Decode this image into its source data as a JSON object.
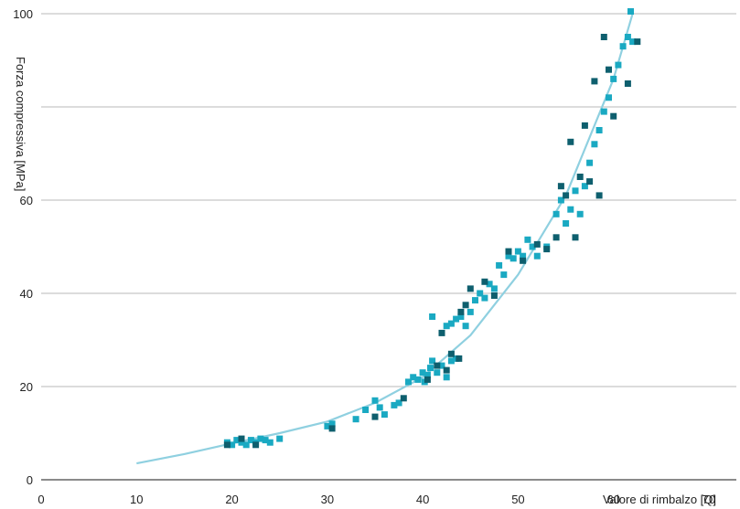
{
  "chart_data": {
    "type": "scatter",
    "xlabel": "Valore di rimbalzo [Q]",
    "ylabel": "Forza compressiva [MPa]",
    "xlim": [
      0,
      70
    ],
    "ylim": [
      0,
      100
    ],
    "x_ticks": [
      "0",
      "10",
      "20",
      "30",
      "40",
      "50",
      "60",
      "70"
    ],
    "y_ticks": [
      {
        "value": 0,
        "label": "0",
        "color": "#222222"
      },
      {
        "value": 20,
        "label": "20",
        "color": "#222222"
      },
      {
        "value": 40,
        "label": "40",
        "color": "#222222"
      },
      {
        "value": 60,
        "label": "60",
        "color": "#2f8c7a"
      },
      {
        "value": 100,
        "label": "100",
        "color": "#222222"
      }
    ],
    "grid": {
      "horizontal": true,
      "vertical": false,
      "lines_at": [
        20,
        40,
        60,
        80,
        100
      ]
    },
    "colors": {
      "marker_light": "#1aa9c2",
      "marker_dark": "#0e5f6e",
      "curve": "#8fd0e0",
      "grid": "#c8c8c8",
      "axis": "#444444"
    },
    "trendline": {
      "x": [
        10,
        15,
        20,
        25,
        30,
        35,
        40,
        45,
        50,
        55,
        60,
        62
      ],
      "y": [
        3.5,
        5.5,
        7.8,
        10.0,
        12.5,
        16.5,
        22.0,
        31.0,
        44.0,
        61.0,
        86.0,
        100.0
      ]
    },
    "series": [
      {
        "shade": "light",
        "points": [
          [
            19.5,
            8
          ],
          [
            20,
            7.5
          ],
          [
            20.5,
            8.5
          ],
          [
            21,
            8
          ],
          [
            21.5,
            7.5
          ],
          [
            22,
            8.5
          ],
          [
            22.5,
            8
          ],
          [
            23,
            8.8
          ],
          [
            23.5,
            8.5
          ],
          [
            24,
            8
          ],
          [
            25,
            8.8
          ],
          [
            30,
            11.5
          ],
          [
            30.5,
            12
          ],
          [
            33,
            13
          ],
          [
            34,
            15
          ],
          [
            35,
            17
          ],
          [
            35.5,
            15.5
          ],
          [
            36,
            14
          ],
          [
            37,
            16
          ],
          [
            37.5,
            16.5
          ],
          [
            38.5,
            21
          ],
          [
            39,
            22
          ],
          [
            39.5,
            21.5
          ],
          [
            40,
            23
          ],
          [
            40.2,
            21
          ],
          [
            40.5,
            22.5
          ],
          [
            40.8,
            24
          ],
          [
            41,
            25.5
          ],
          [
            41.5,
            23
          ],
          [
            42,
            24.5
          ],
          [
            42.5,
            22
          ],
          [
            43,
            25.5
          ],
          [
            43.5,
            26
          ],
          [
            41,
            35
          ],
          [
            42.5,
            33
          ],
          [
            43,
            33.5
          ],
          [
            43.5,
            34.5
          ],
          [
            44,
            35
          ],
          [
            44.5,
            33
          ],
          [
            45,
            36
          ],
          [
            45.5,
            38.5
          ],
          [
            46,
            40
          ],
          [
            46.5,
            39
          ],
          [
            47,
            42
          ],
          [
            47.5,
            41
          ],
          [
            48,
            46
          ],
          [
            48.5,
            44
          ],
          [
            49,
            48
          ],
          [
            49.5,
            47.5
          ],
          [
            50,
            49
          ],
          [
            50.5,
            48
          ],
          [
            51,
            51.5
          ],
          [
            51.5,
            50
          ],
          [
            52,
            48
          ],
          [
            53,
            50
          ],
          [
            54,
            57
          ],
          [
            54.5,
            60
          ],
          [
            55,
            55
          ],
          [
            55.5,
            58
          ],
          [
            56,
            62
          ],
          [
            56.5,
            57
          ],
          [
            57,
            63
          ],
          [
            57.5,
            68
          ],
          [
            58,
            72
          ],
          [
            58.5,
            75
          ],
          [
            59,
            79
          ],
          [
            59.5,
            82
          ],
          [
            60,
            86
          ],
          [
            60.5,
            89
          ],
          [
            61,
            93
          ],
          [
            61.5,
            95
          ],
          [
            62,
            94
          ],
          [
            61.8,
            100.5
          ]
        ]
      },
      {
        "shade": "dark",
        "points": [
          [
            19.5,
            7.5
          ],
          [
            21,
            8.8
          ],
          [
            22.5,
            7.5
          ],
          [
            30.5,
            11
          ],
          [
            35,
            13.5
          ],
          [
            38,
            17.5
          ],
          [
            40.5,
            21.5
          ],
          [
            41.5,
            24.5
          ],
          [
            42.5,
            23.5
          ],
          [
            43,
            27
          ],
          [
            43.8,
            26
          ],
          [
            42,
            31.5
          ],
          [
            44,
            36
          ],
          [
            44.5,
            37.5
          ],
          [
            45,
            41
          ],
          [
            46.5,
            42.5
          ],
          [
            47.5,
            39.5
          ],
          [
            49,
            49
          ],
          [
            50.5,
            47
          ],
          [
            52,
            50.5
          ],
          [
            53,
            49.5
          ],
          [
            54,
            52
          ],
          [
            54.5,
            63
          ],
          [
            55,
            61
          ],
          [
            55.5,
            72.5
          ],
          [
            56,
            52
          ],
          [
            56.5,
            65
          ],
          [
            57,
            76
          ],
          [
            57.5,
            64
          ],
          [
            58,
            85.5
          ],
          [
            58.5,
            61
          ],
          [
            59,
            95
          ],
          [
            59.5,
            88
          ],
          [
            60,
            78
          ],
          [
            61.5,
            85
          ],
          [
            62.5,
            94
          ]
        ]
      }
    ]
  }
}
